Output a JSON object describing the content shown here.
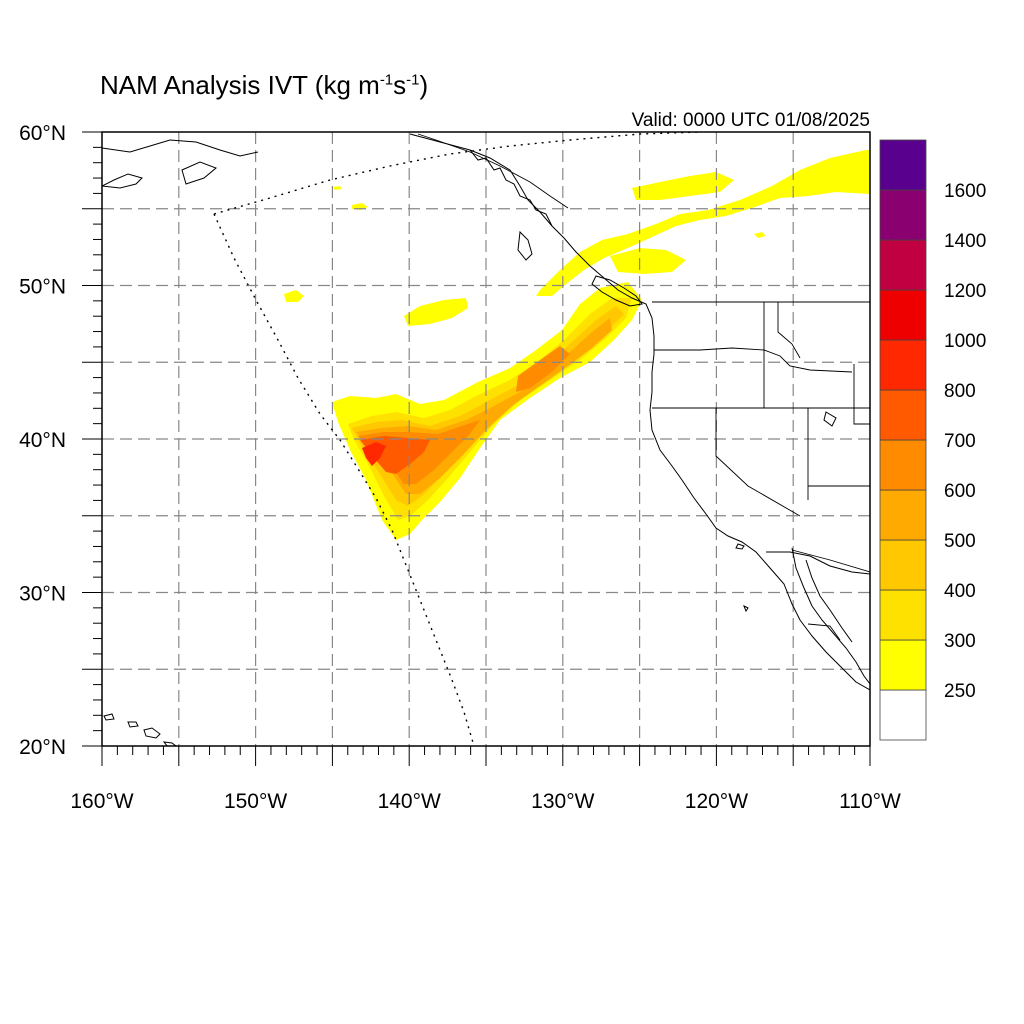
{
  "title": {
    "prefix": "NAM Analysis IVT (kg m",
    "exp1": "-1",
    "mid": "s",
    "exp2": "-1",
    "suffix": ")"
  },
  "valid_label": "Valid: 0000 UTC 01/08/2025",
  "axes": {
    "lon_labels": [
      "160°W",
      "150°W",
      "140°W",
      "130°W",
      "120°W",
      "110°W"
    ],
    "lat_labels": [
      "20°N",
      "30°N",
      "40°N",
      "50°N",
      "60°N"
    ],
    "lon_range": [
      -160,
      -110
    ],
    "lat_range": [
      20,
      60
    ],
    "grid": true
  },
  "colorbar": {
    "levels": [
      "250",
      "300",
      "400",
      "500",
      "600",
      "700",
      "800",
      "1000",
      "1200",
      "1400",
      "1600"
    ],
    "colors": [
      "#ffffff",
      "#ffff00",
      "#ffe100",
      "#ffc800",
      "#ffaa00",
      "#ff8c00",
      "#ff5a00",
      "#ff2800",
      "#ee0000",
      "#c00040",
      "#8a0070",
      "#5a008e"
    ]
  },
  "colors": {
    "ivt_250": "#ffff00",
    "ivt_300": "#ffe100",
    "ivt_400": "#ffc800",
    "ivt_500": "#ffaa00",
    "ivt_600": "#ff8c00",
    "ivt_700": "#ff5a00",
    "ivt_800": "#ff2800",
    "ivt_1000": "#ee0000",
    "land_lines": "#000000",
    "grid": "#888888"
  }
}
